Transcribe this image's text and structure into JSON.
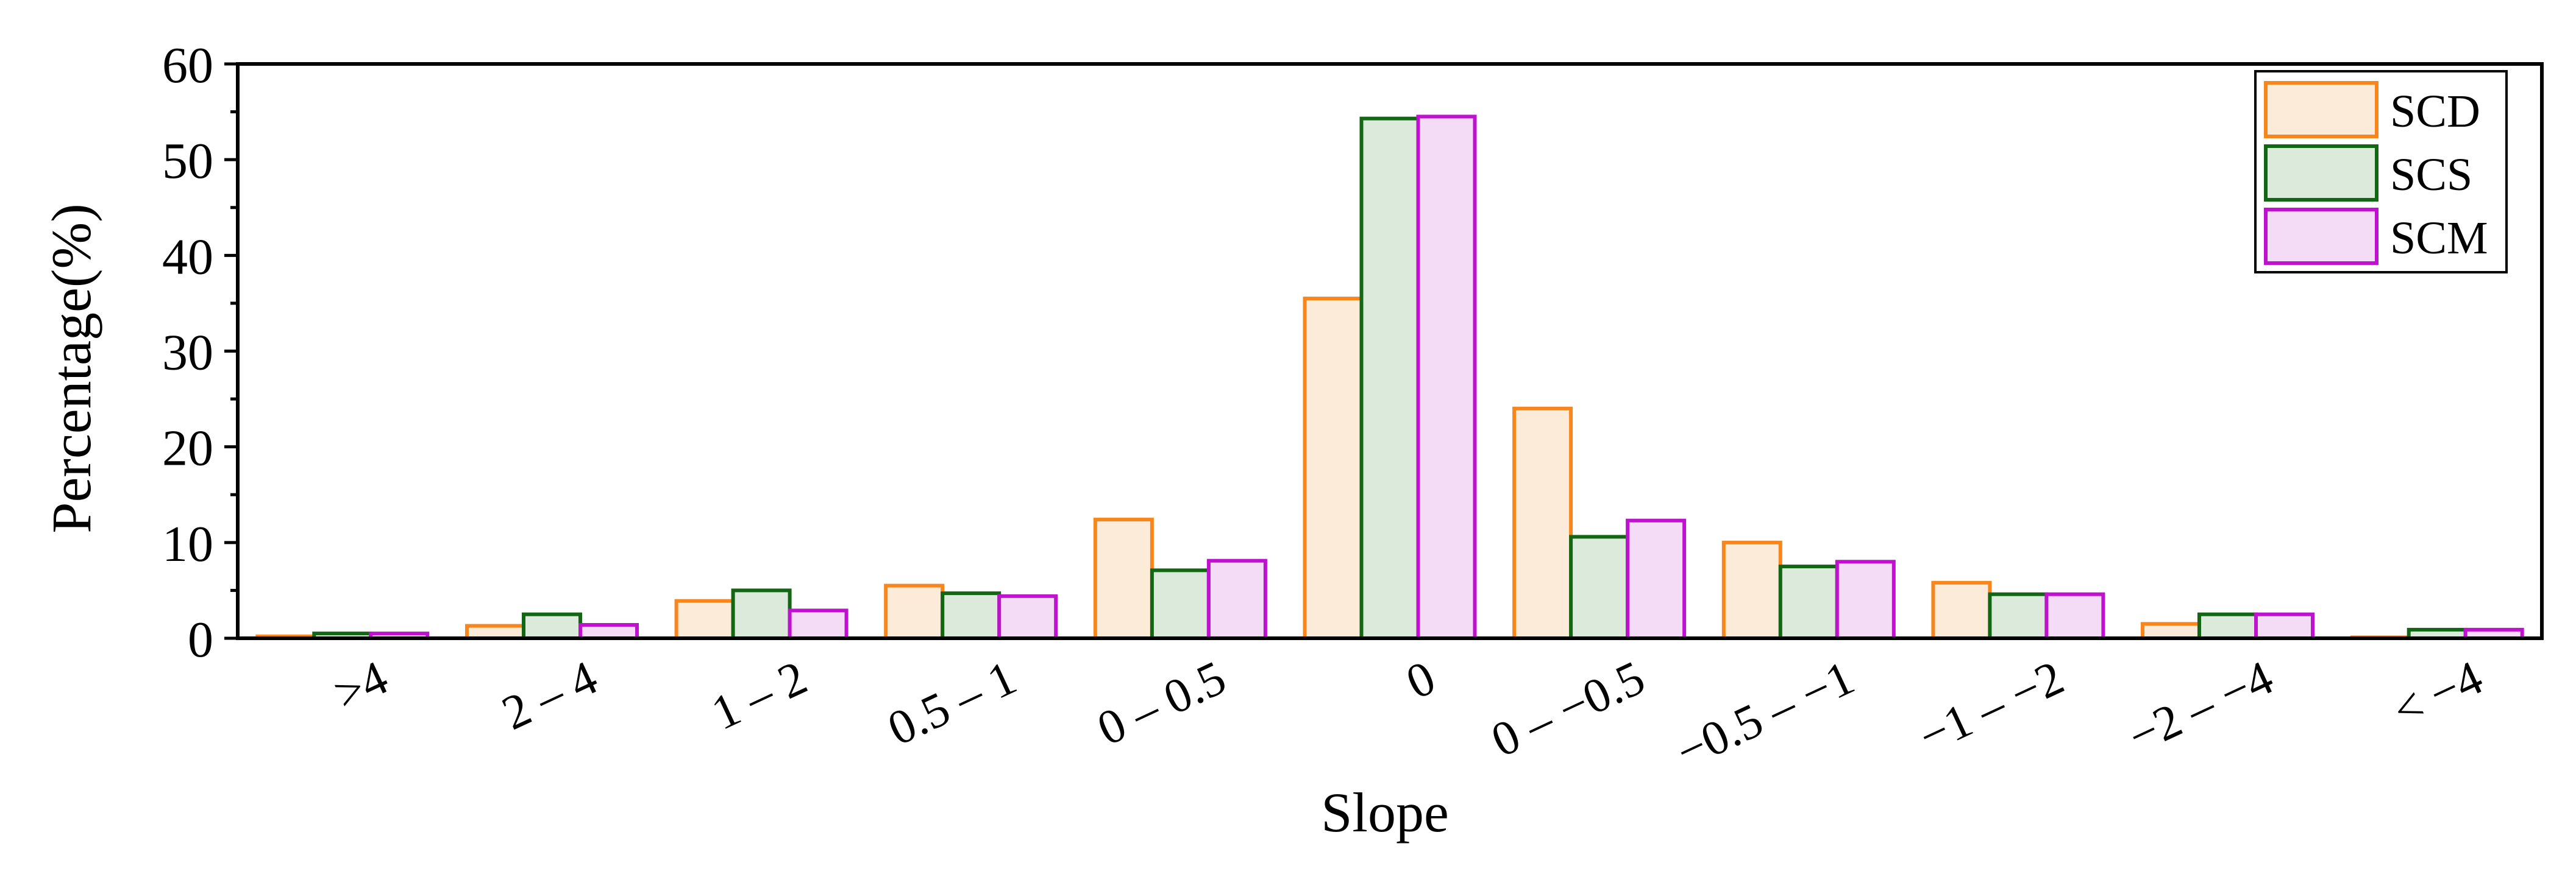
{
  "chart_data": {
    "type": "bar",
    "title": "",
    "xlabel": "Slope",
    "ylabel": "Percentage(%)",
    "ylim": [
      0,
      60
    ],
    "yticks": [
      0,
      10,
      20,
      30,
      40,
      50,
      60
    ],
    "grid": false,
    "legend_position": "top-right",
    "categories": [
      ">4",
      "2 – 4",
      "1 – 2",
      "0.5 – 1",
      "0 – 0.5",
      "0",
      "0 – −0.5",
      "−0.5 – −1",
      "−1 – −2",
      "−2 – −4",
      "< −4"
    ],
    "series": [
      {
        "name": "SCD",
        "stroke": "#F7861C",
        "fill": "#FDEBD9",
        "values": [
          0.2,
          1.3,
          3.9,
          5.5,
          12.4,
          35.5,
          24.0,
          10.0,
          5.8,
          1.5,
          0.1
        ]
      },
      {
        "name": "SCS",
        "stroke": "#136613",
        "fill": "#DBEADB",
        "values": [
          0.5,
          2.5,
          5.0,
          4.7,
          7.1,
          54.3,
          10.6,
          7.5,
          4.6,
          2.5,
          0.9
        ]
      },
      {
        "name": "SCM",
        "stroke": "#BF12CF",
        "fill": "#F4DCF6",
        "values": [
          0.5,
          1.4,
          2.9,
          4.4,
          8.1,
          54.5,
          12.3,
          8.0,
          4.6,
          2.5,
          0.9
        ]
      }
    ]
  }
}
